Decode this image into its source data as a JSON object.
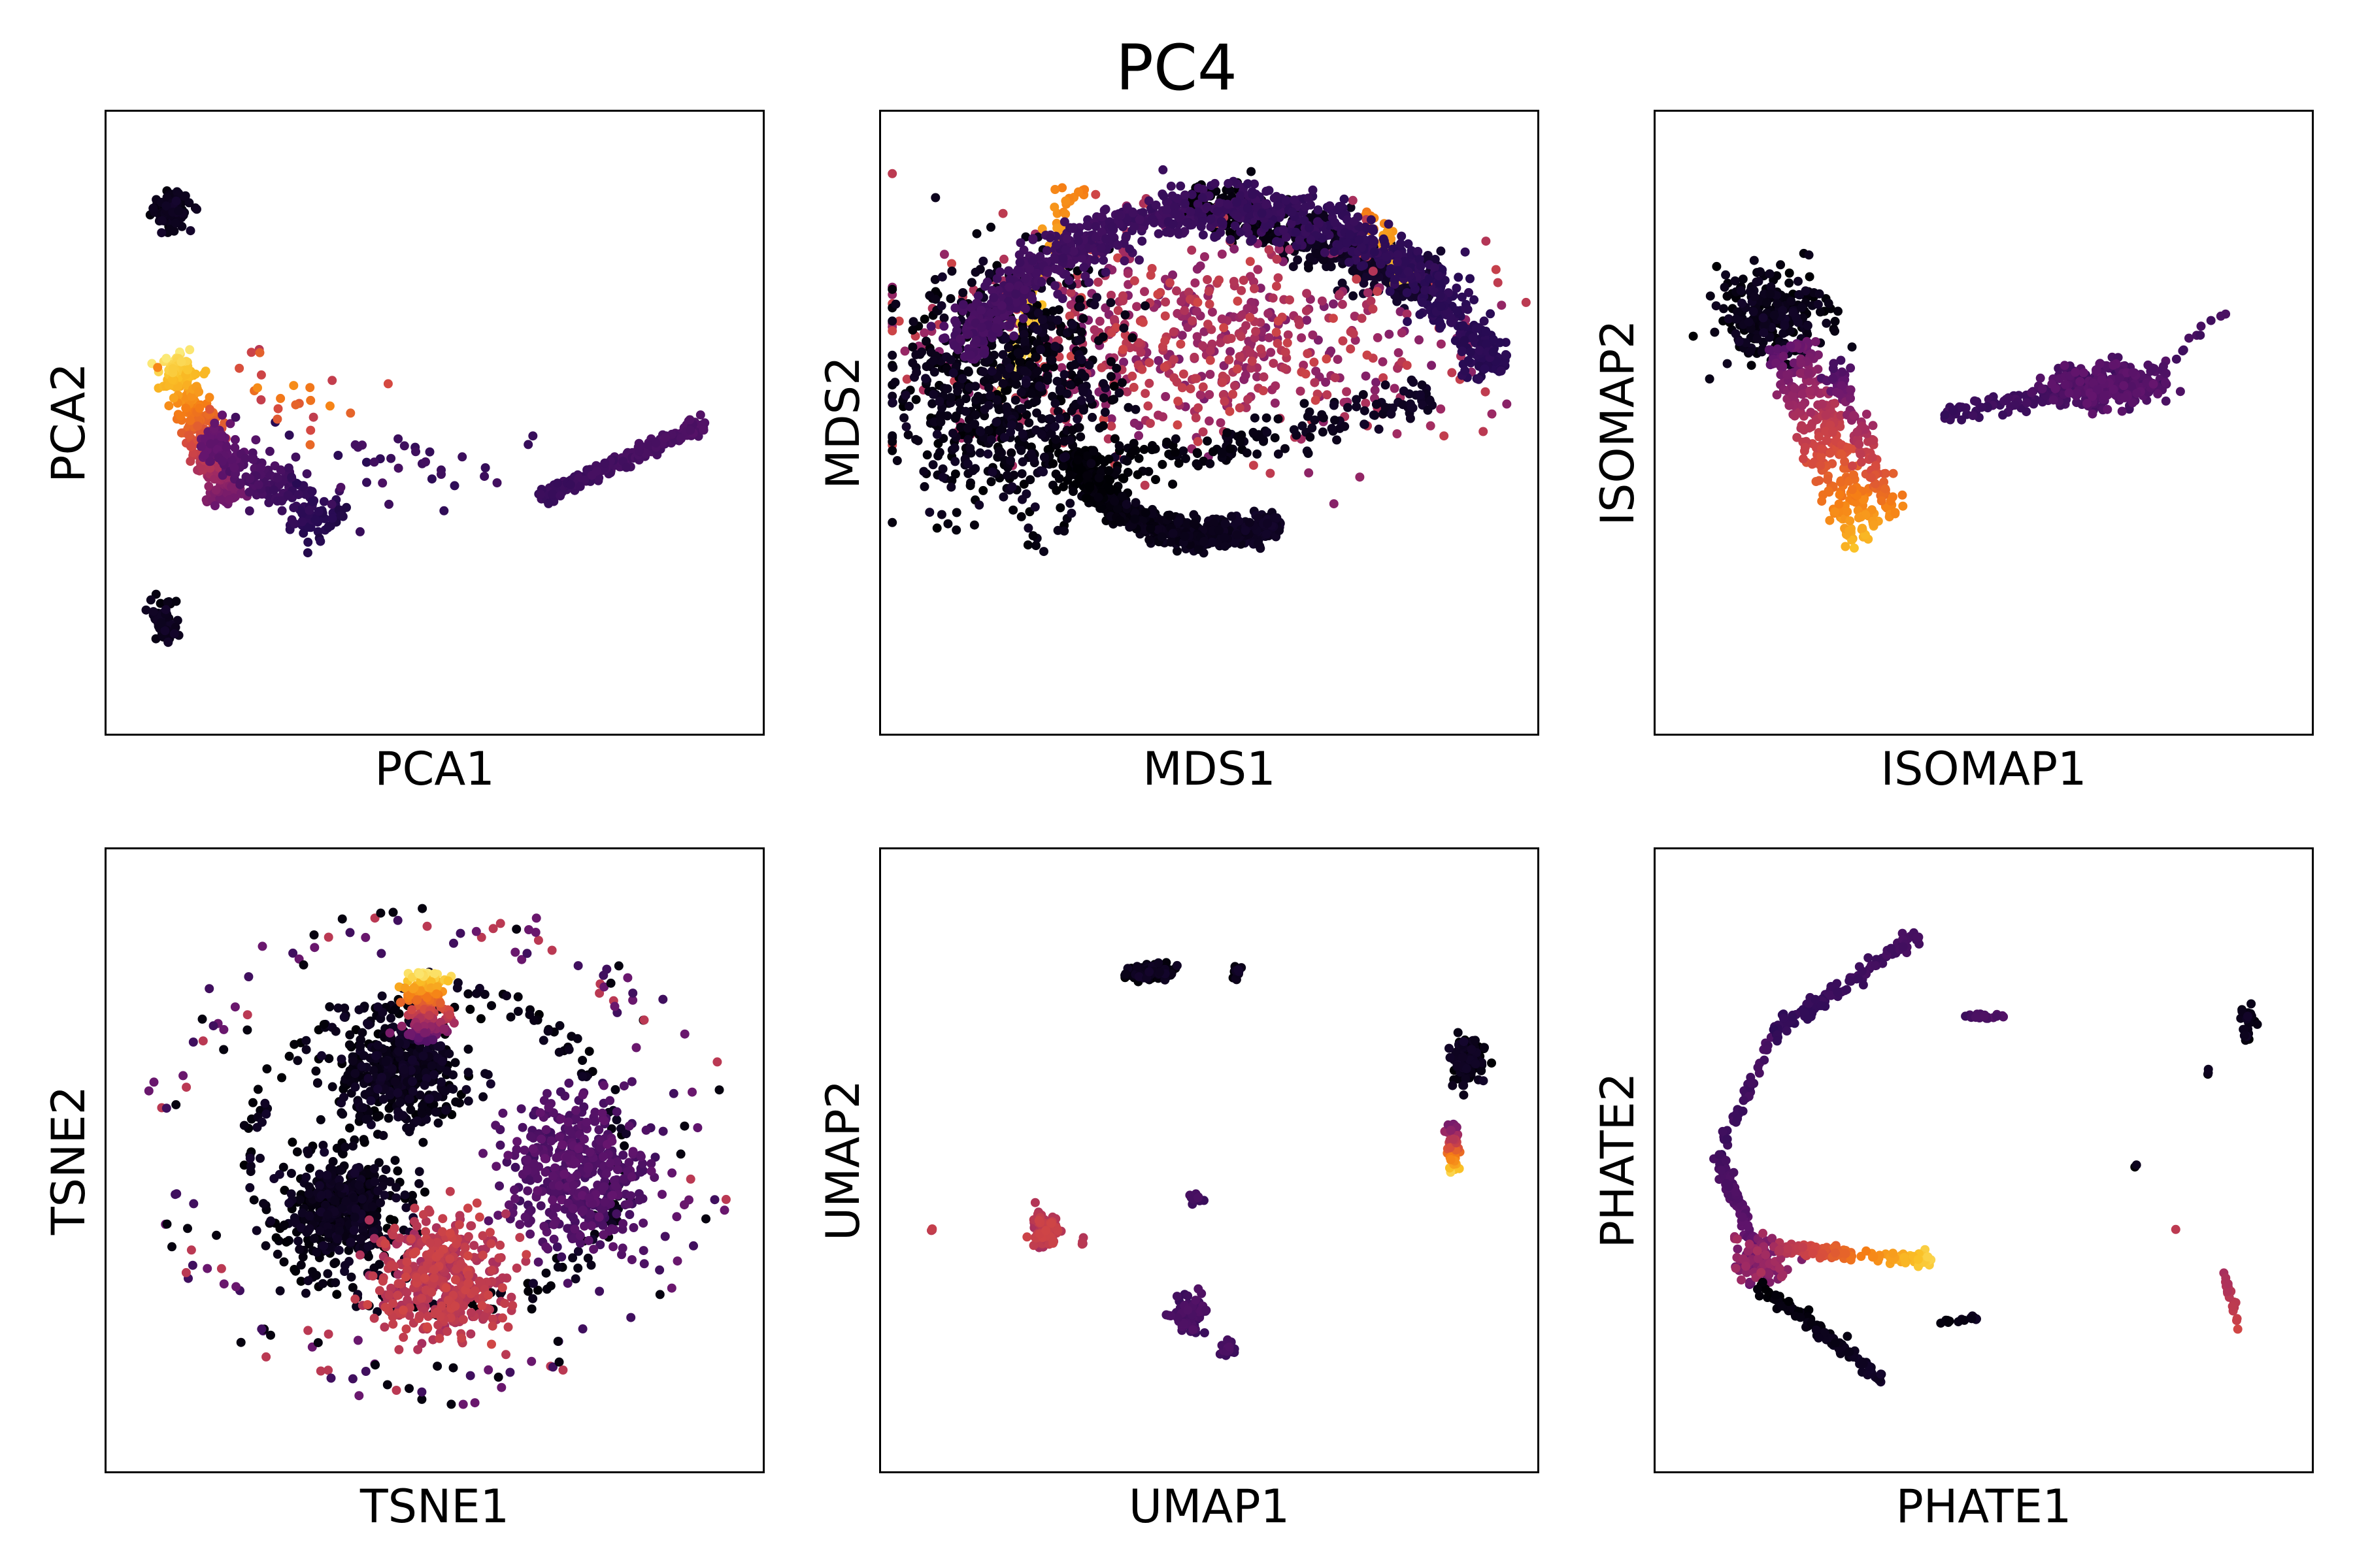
{
  "figure": {
    "title": "PC4",
    "colors": {
      "low": "#000004",
      "mid": "#b73779",
      "high": "#fcffa4"
    }
  },
  "chart_data": [
    {
      "type": "scatter",
      "xlabel": "PCA1",
      "ylabel": "PCA2",
      "ticks": "none",
      "grid": false,
      "clusters": [
        {
          "shape": "blob",
          "cx": 0.1,
          "cy": 0.84,
          "rx": 0.025,
          "ry": 0.025,
          "n": 90,
          "v0": 0.02,
          "v1": 0.06,
          "size": 7
        },
        {
          "shape": "blob",
          "cx": 0.09,
          "cy": 0.18,
          "rx": 0.013,
          "ry": 0.03,
          "n": 70,
          "v0": 0.02,
          "v1": 0.06,
          "size": 7
        },
        {
          "shape": "line",
          "x0": 0.1,
          "y0": 0.61,
          "x1": 0.19,
          "y1": 0.37,
          "w": 0.03,
          "n": 320,
          "v0": 0.95,
          "v1": 0.3,
          "size": 7
        },
        {
          "shape": "line",
          "x0": 0.15,
          "y0": 0.48,
          "x1": 0.35,
          "y1": 0.33,
          "w": 0.04,
          "n": 230,
          "v0": 0.3,
          "v1": 0.12,
          "size": 7
        },
        {
          "shape": "line",
          "x0": 0.66,
          "y0": 0.38,
          "x1": 0.91,
          "y1": 0.5,
          "w": 0.012,
          "n": 260,
          "v0": 0.18,
          "v1": 0.24,
          "size": 7
        },
        {
          "shape": "blob",
          "cx": 0.45,
          "cy": 0.42,
          "rx": 0.2,
          "ry": 0.06,
          "n": 40,
          "v0": 0.15,
          "v1": 0.22,
          "size": 7
        },
        {
          "shape": "blob",
          "cx": 0.28,
          "cy": 0.55,
          "rx": 0.1,
          "ry": 0.07,
          "n": 25,
          "v0": 0.5,
          "v1": 0.75,
          "size": 7
        }
      ]
    },
    {
      "type": "scatter",
      "xlabel": "MDS1",
      "ylabel": "MDS2",
      "ticks": "none",
      "grid": false,
      "clusters": [
        {
          "shape": "arc",
          "cx": 0.5,
          "cy": 0.5,
          "rx": 0.21,
          "ry": 0.18,
          "a0": 195,
          "a1": 300,
          "w": 0.06,
          "n": 750,
          "v0": 0.0,
          "v1": 0.06,
          "size": 7
        },
        {
          "shape": "line",
          "x0": 0.47,
          "y0": 0.86,
          "x1": 0.84,
          "y1": 0.72,
          "w": 0.04,
          "n": 500,
          "v0": 0.0,
          "v1": 0.08,
          "size": 7
        },
        {
          "shape": "line",
          "x0": 0.74,
          "y0": 0.84,
          "x1": 0.8,
          "y1": 0.72,
          "w": 0.02,
          "n": 40,
          "v0": 0.7,
          "v1": 0.9,
          "size": 7
        },
        {
          "shape": "blob",
          "cx": 0.47,
          "cy": 0.63,
          "rx": 0.33,
          "ry": 0.14,
          "n": 650,
          "v0": 0.35,
          "v1": 0.55,
          "size": 7
        },
        {
          "shape": "line",
          "x0": 0.3,
          "y0": 0.88,
          "x1": 0.18,
          "y1": 0.55,
          "w": 0.025,
          "n": 70,
          "v0": 0.72,
          "v1": 0.95,
          "size": 7
        },
        {
          "shape": "blob",
          "cx": 0.19,
          "cy": 0.55,
          "rx": 0.14,
          "ry": 0.17,
          "n": 700,
          "v0": 0.0,
          "v1": 0.06,
          "size": 7
        },
        {
          "shape": "line",
          "x0": 0.26,
          "y0": 0.4,
          "x1": 0.84,
          "y1": 0.54,
          "w": 0.035,
          "n": 180,
          "v0": 0.0,
          "v1": 0.06,
          "size": 7
        },
        {
          "shape": "arc",
          "cx": 0.52,
          "cy": 0.44,
          "rx": 0.44,
          "ry": 0.4,
          "a0": 20,
          "a1": 155,
          "w": 0.05,
          "n": 1000,
          "v0": 0.14,
          "v1": 0.22,
          "size": 7
        }
      ]
    },
    {
      "type": "scatter",
      "xlabel": "ISOMAP1",
      "ylabel": "ISOMAP2",
      "ticks": "none",
      "grid": false,
      "clusters": [
        {
          "shape": "blob",
          "cx": 0.18,
          "cy": 0.67,
          "rx": 0.07,
          "ry": 0.06,
          "n": 260,
          "v0": 0.0,
          "v1": 0.06,
          "size": 7
        },
        {
          "shape": "line",
          "x0": 0.18,
          "y0": 0.62,
          "x1": 0.31,
          "y1": 0.3,
          "w": 0.02,
          "n": 150,
          "v0": 0.25,
          "v1": 0.85,
          "size": 7
        },
        {
          "shape": "line",
          "x0": 0.22,
          "y0": 0.63,
          "x1": 0.33,
          "y1": 0.33,
          "w": 0.02,
          "n": 140,
          "v0": 0.3,
          "v1": 0.8,
          "size": 7
        },
        {
          "shape": "line",
          "x0": 0.27,
          "y0": 0.6,
          "x1": 0.36,
          "y1": 0.35,
          "w": 0.02,
          "n": 110,
          "v0": 0.2,
          "v1": 0.75,
          "size": 7
        },
        {
          "shape": "line",
          "x0": 0.44,
          "y0": 0.51,
          "x1": 0.78,
          "y1": 0.58,
          "w": 0.02,
          "n": 130,
          "v0": 0.18,
          "v1": 0.24,
          "size": 7
        },
        {
          "shape": "blob",
          "cx": 0.68,
          "cy": 0.56,
          "rx": 0.07,
          "ry": 0.03,
          "n": 230,
          "v0": 0.2,
          "v1": 0.28,
          "size": 7
        },
        {
          "shape": "line",
          "x0": 0.78,
          "y0": 0.6,
          "x1": 0.91,
          "y1": 0.72,
          "w": 0.008,
          "n": 10,
          "v0": 0.2,
          "v1": 0.22,
          "size": 7
        }
      ]
    },
    {
      "type": "scatter",
      "xlabel": "TSNE1",
      "ylabel": "TSNE2",
      "ticks": "none",
      "grid": false,
      "clusters": [
        {
          "shape": "ring",
          "cx": 0.5,
          "cy": 0.51,
          "rx": 0.4,
          "ry": 0.37,
          "w": 0.06,
          "n": 150,
          "mix": true,
          "size": 7
        },
        {
          "shape": "ring",
          "cx": 0.5,
          "cy": 0.51,
          "rx": 0.28,
          "ry": 0.25,
          "w": 0.05,
          "n": 200,
          "v0": 0.0,
          "v1": 0.06,
          "size": 7
        },
        {
          "shape": "blob",
          "cx": 0.45,
          "cy": 0.64,
          "rx": 0.08,
          "ry": 0.07,
          "n": 450,
          "v0": 0.0,
          "v1": 0.06,
          "size": 7
        },
        {
          "shape": "line",
          "x0": 0.49,
          "y0": 0.69,
          "x1": 0.49,
          "y1": 0.8,
          "w": 0.035,
          "n": 180,
          "v0": 0.25,
          "v1": 0.95,
          "size": 7
        },
        {
          "shape": "blob",
          "cx": 0.72,
          "cy": 0.48,
          "rx": 0.09,
          "ry": 0.1,
          "n": 450,
          "v0": 0.2,
          "v1": 0.28,
          "size": 7
        },
        {
          "shape": "blob",
          "cx": 0.36,
          "cy": 0.42,
          "rx": 0.07,
          "ry": 0.08,
          "n": 450,
          "v0": 0.0,
          "v1": 0.06,
          "size": 7
        },
        {
          "shape": "blob",
          "cx": 0.51,
          "cy": 0.31,
          "rx": 0.08,
          "ry": 0.08,
          "n": 420,
          "v0": 0.45,
          "v1": 0.55,
          "size": 7
        }
      ]
    },
    {
      "type": "scatter",
      "xlabel": "UMAP1",
      "ylabel": "UMAP2",
      "ticks": "none",
      "grid": false,
      "clusters": [
        {
          "shape": "blob",
          "cx": 0.41,
          "cy": 0.8,
          "rx": 0.03,
          "ry": 0.012,
          "n": 90,
          "v0": 0.0,
          "v1": 0.06,
          "size": 7
        },
        {
          "shape": "blob",
          "cx": 0.54,
          "cy": 0.8,
          "rx": 0.006,
          "ry": 0.008,
          "n": 12,
          "v0": 0.0,
          "v1": 0.06,
          "size": 7
        },
        {
          "shape": "blob",
          "cx": 0.89,
          "cy": 0.66,
          "rx": 0.022,
          "ry": 0.028,
          "n": 140,
          "v0": 0.0,
          "v1": 0.06,
          "size": 7
        },
        {
          "shape": "line",
          "x0": 0.87,
          "y0": 0.56,
          "x1": 0.87,
          "y1": 0.48,
          "w": 0.01,
          "n": 55,
          "v0": 0.3,
          "v1": 0.9,
          "size": 7
        },
        {
          "shape": "blob",
          "cx": 0.48,
          "cy": 0.44,
          "rx": 0.008,
          "ry": 0.01,
          "n": 12,
          "v0": 0.18,
          "v1": 0.22,
          "size": 7
        },
        {
          "shape": "blob",
          "cx": 0.25,
          "cy": 0.39,
          "rx": 0.02,
          "ry": 0.025,
          "n": 90,
          "v0": 0.45,
          "v1": 0.55,
          "size": 7
        },
        {
          "shape": "blob",
          "cx": 0.08,
          "cy": 0.39,
          "rx": 0.004,
          "ry": 0.004,
          "n": 3,
          "v0": 0.48,
          "v1": 0.52,
          "size": 7
        },
        {
          "shape": "blob",
          "cx": 0.31,
          "cy": 0.37,
          "rx": 0.004,
          "ry": 0.006,
          "n": 4,
          "v0": 0.45,
          "v1": 0.5,
          "size": 7
        },
        {
          "shape": "blob",
          "cx": 0.47,
          "cy": 0.25,
          "rx": 0.022,
          "ry": 0.025,
          "n": 90,
          "v0": 0.18,
          "v1": 0.24,
          "size": 7
        },
        {
          "shape": "blob",
          "cx": 0.53,
          "cy": 0.2,
          "rx": 0.008,
          "ry": 0.012,
          "n": 18,
          "v0": 0.18,
          "v1": 0.24,
          "size": 7
        }
      ]
    },
    {
      "type": "scatter",
      "xlabel": "PHATE1",
      "ylabel": "PHATE2",
      "ticks": "none",
      "grid": false,
      "clusters": [
        {
          "shape": "line",
          "x0": 0.1,
          "y0": 0.51,
          "x1": 0.18,
          "y1": 0.7,
          "w": 0.008,
          "n": 40,
          "v0": 0.18,
          "v1": 0.22,
          "size": 7
        },
        {
          "shape": "line",
          "x0": 0.18,
          "y0": 0.7,
          "x1": 0.4,
          "y1": 0.86,
          "w": 0.012,
          "n": 130,
          "v0": 0.16,
          "v1": 0.22,
          "size": 7
        },
        {
          "shape": "line",
          "x0": 0.1,
          "y0": 0.51,
          "x1": 0.16,
          "y1": 0.34,
          "w": 0.01,
          "n": 90,
          "v0": 0.2,
          "v1": 0.3,
          "size": 7
        },
        {
          "shape": "blob",
          "cx": 0.16,
          "cy": 0.34,
          "rx": 0.03,
          "ry": 0.03,
          "n": 90,
          "v0": 0.3,
          "v1": 0.45,
          "size": 7
        },
        {
          "shape": "line",
          "x0": 0.18,
          "y0": 0.36,
          "x1": 0.42,
          "y1": 0.34,
          "w": 0.01,
          "n": 130,
          "v0": 0.45,
          "v1": 0.9,
          "size": 7
        },
        {
          "shape": "line",
          "x0": 0.16,
          "y0": 0.3,
          "x1": 0.35,
          "y1": 0.15,
          "w": 0.01,
          "n": 100,
          "v0": 0.0,
          "v1": 0.06,
          "size": 7
        },
        {
          "shape": "line",
          "x0": 0.47,
          "y0": 0.73,
          "x1": 0.53,
          "y1": 0.73,
          "w": 0.004,
          "n": 20,
          "v0": 0.2,
          "v1": 0.24,
          "size": 7
        },
        {
          "shape": "line",
          "x0": 0.42,
          "y0": 0.24,
          "x1": 0.5,
          "y1": 0.25,
          "w": 0.004,
          "n": 16,
          "v0": 0.0,
          "v1": 0.06,
          "size": 7
        },
        {
          "shape": "blob",
          "cx": 0.9,
          "cy": 0.72,
          "rx": 0.01,
          "ry": 0.025,
          "n": 25,
          "v0": 0.0,
          "v1": 0.06,
          "size": 7
        },
        {
          "shape": "blob",
          "cx": 0.84,
          "cy": 0.64,
          "rx": 0.003,
          "ry": 0.006,
          "n": 3,
          "v0": 0.0,
          "v1": 0.06,
          "size": 7
        },
        {
          "shape": "blob",
          "cx": 0.73,
          "cy": 0.49,
          "rx": 0.003,
          "ry": 0.003,
          "n": 2,
          "v0": 0.0,
          "v1": 0.06,
          "size": 7
        },
        {
          "shape": "line",
          "x0": 0.86,
          "y0": 0.32,
          "x1": 0.89,
          "y1": 0.23,
          "w": 0.006,
          "n": 20,
          "v0": 0.45,
          "v1": 0.55,
          "size": 7
        },
        {
          "shape": "blob",
          "cx": 0.79,
          "cy": 0.39,
          "rx": 0.003,
          "ry": 0.003,
          "n": 1,
          "v0": 0.5,
          "v1": 0.5,
          "size": 7
        }
      ]
    }
  ]
}
